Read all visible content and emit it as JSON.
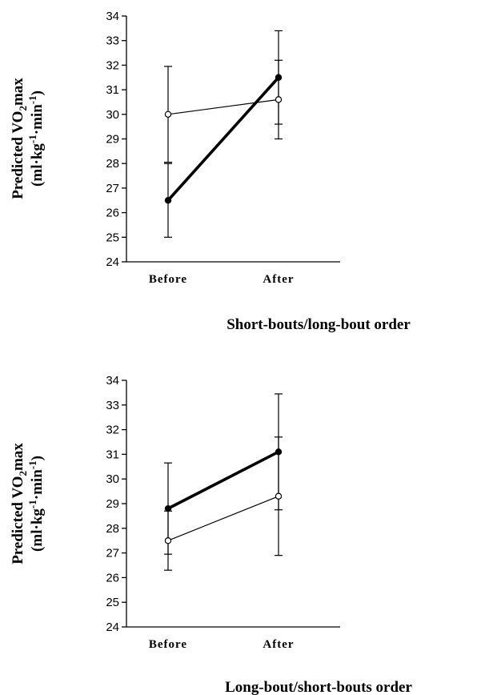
{
  "chart_data": [
    {
      "type": "line",
      "xlabel": "Short-bouts/long-bout order",
      "ylabel_main": "Predicted VO",
      "ylabel_sub": "2",
      "ylabel_tail": "max",
      "yunit_open": "(ml·kg",
      "yunit_exp1": "-1",
      "yunit_mid": "·min",
      "yunit_exp2": "-1",
      "yunit_close": ")",
      "categories": [
        "Before",
        "After"
      ],
      "ylim": [
        24,
        34
      ],
      "yticks": [
        "24",
        "25",
        "26",
        "27",
        "28",
        "29",
        "30",
        "31",
        "32",
        "33",
        "34"
      ],
      "series": [
        {
          "style": "bold-filled",
          "values": [
            26.5,
            31.5
          ],
          "errors": [
            1.5,
            1.9
          ]
        },
        {
          "style": "thin-open",
          "values": [
            30.0,
            30.6
          ],
          "errors": [
            1.95,
            1.6
          ]
        }
      ]
    },
    {
      "type": "line",
      "xlabel": "Long-bout/short-bouts order",
      "ylabel_main": "Predicted VO",
      "ylabel_sub": "2",
      "ylabel_tail": "max",
      "yunit_open": "(ml·kg",
      "yunit_exp1": "-1",
      "yunit_mid": "·min",
      "yunit_exp2": "-1",
      "yunit_close": ")",
      "categories": [
        "Before",
        "After"
      ],
      "ylim": [
        24,
        34
      ],
      "yticks": [
        "24",
        "25",
        "26",
        "27",
        "28",
        "29",
        "30",
        "31",
        "32",
        "33",
        "34"
      ],
      "series": [
        {
          "style": "bold-filled",
          "values": [
            28.8,
            31.1
          ],
          "errors": [
            1.85,
            2.35
          ]
        },
        {
          "style": "thin-open",
          "values": [
            27.5,
            29.3
          ],
          "errors": [
            1.2,
            2.4
          ]
        }
      ]
    }
  ]
}
